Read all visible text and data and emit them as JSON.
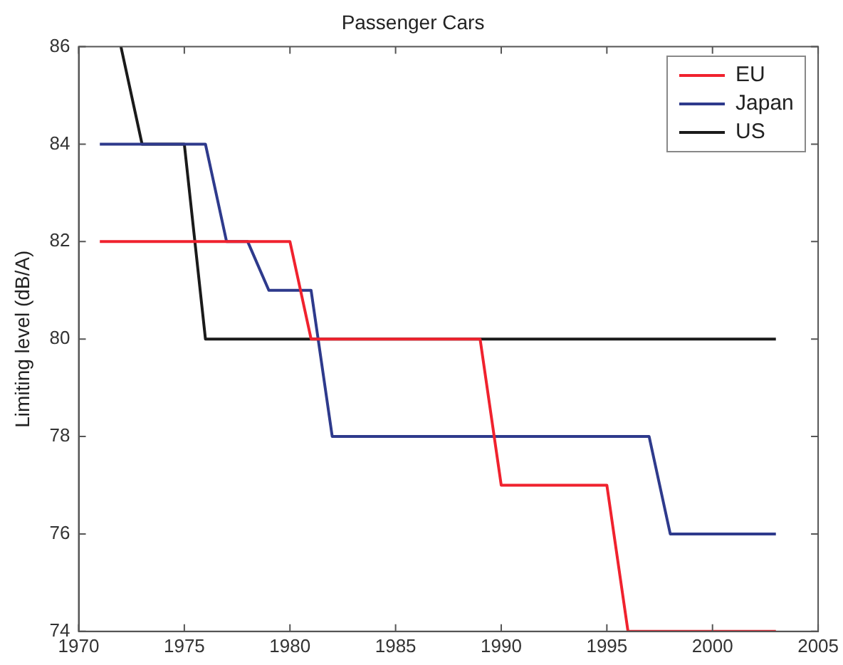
{
  "chart_data": {
    "type": "line",
    "title": "Passenger Cars",
    "ylabel": "Limiting level (dB/A)",
    "xlim": [
      1970,
      2005
    ],
    "xticks": [
      1970,
      1975,
      1980,
      1985,
      1990,
      1995,
      2000,
      2005
    ],
    "ylim": [
      74,
      86
    ],
    "yticks": [
      74,
      76,
      78,
      80,
      82,
      84,
      86
    ],
    "grid": false,
    "legend": "top right",
    "marker": "none",
    "line_style": "solid",
    "series": [
      {
        "name": "EU",
        "color": "#f0222e",
        "x": [
          1971,
          1980,
          1981,
          1989,
          1990,
          1995,
          1996,
          2003
        ],
        "values": [
          82,
          82,
          80,
          80,
          77,
          77,
          74,
          74
        ]
      },
      {
        "name": "Japan",
        "color": "#2e3a8c",
        "x": [
          1971,
          1976,
          1977,
          1978,
          1979,
          1981,
          1982,
          1997,
          1998,
          2003
        ],
        "values": [
          84,
          84,
          82,
          82,
          81,
          81,
          78,
          78,
          76,
          76
        ]
      },
      {
        "name": "US",
        "color": "#1a1a1a",
        "x": [
          1972,
          1973,
          1975,
          1976,
          2003
        ],
        "values": [
          86,
          84,
          84,
          80,
          80
        ]
      }
    ]
  }
}
